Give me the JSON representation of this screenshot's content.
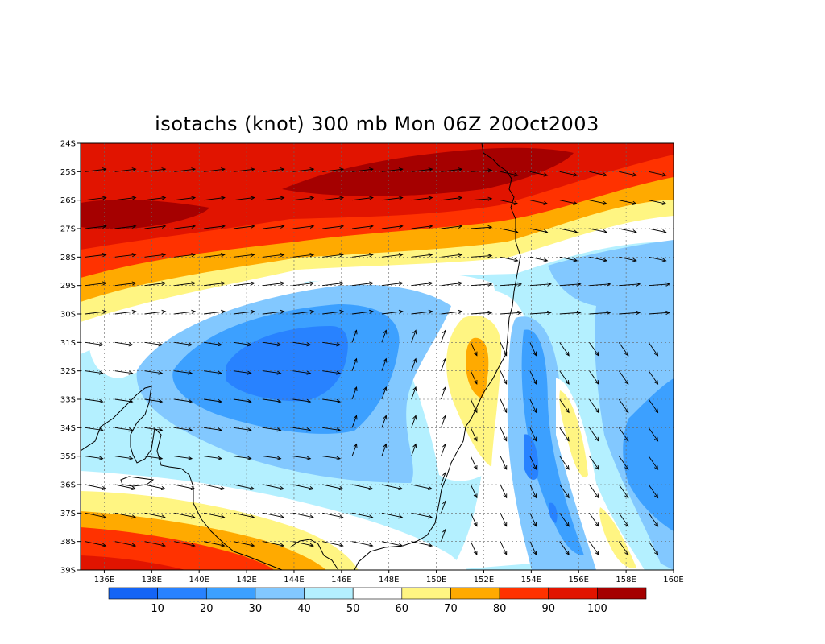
{
  "title": "isotachs (knot) 300 mb Mon 06Z 20Oct2003",
  "map": {
    "projection": "lat-lon",
    "lon_range": [
      135,
      160
    ],
    "lat_range": [
      -39,
      -24
    ],
    "lon_ticks": [
      "136E",
      "138E",
      "140E",
      "142E",
      "144E",
      "146E",
      "148E",
      "150E",
      "152E",
      "154E",
      "156E",
      "158E",
      "160E"
    ],
    "lat_ticks": [
      "24S",
      "25S",
      "26S",
      "27S",
      "28S",
      "29S",
      "30S",
      "31S",
      "32S",
      "33S",
      "34S",
      "35S",
      "36S",
      "37S",
      "38S",
      "39S"
    ],
    "grid": "dotted"
  },
  "colorbar": {
    "levels": [
      "10",
      "20",
      "30",
      "40",
      "50",
      "60",
      "70",
      "80",
      "90",
      "100"
    ],
    "colors": [
      "#1464f5",
      "#2882ff",
      "#3ca0ff",
      "#82c8ff",
      "#b4f0ff",
      "#ffffff",
      "#fff582",
      "#ffaa00",
      "#ff3200",
      "#e11400",
      "#a50000"
    ]
  },
  "colors": {
    "bin0": "#1464f5",
    "bin1": "#2882ff",
    "bin2": "#3ca0ff",
    "bin3": "#82c8ff",
    "bin4": "#b4f0ff",
    "bin5": "#ffffff",
    "bin6": "#fff582",
    "bin7": "#ffaa00",
    "bin8": "#ff3200",
    "bin9": "#e11400",
    "bin10": "#a50000"
  }
}
